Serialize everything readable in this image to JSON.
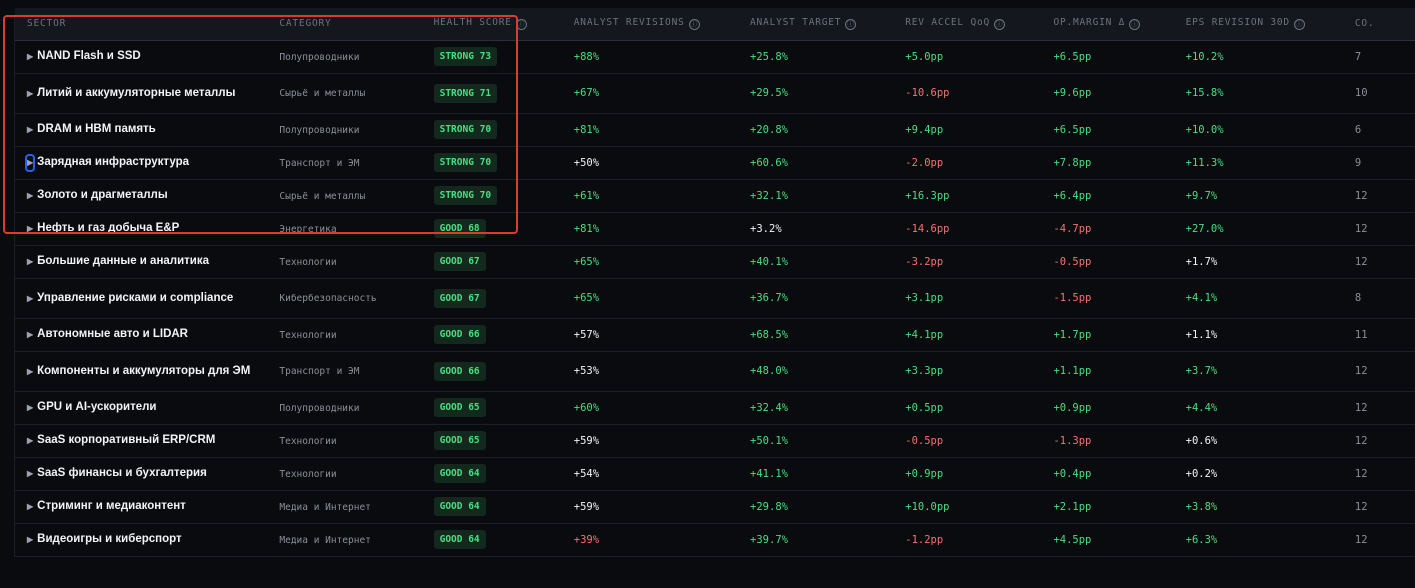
{
  "columns": [
    {
      "label": "SECTOR",
      "info": false
    },
    {
      "label": "CATEGORY",
      "info": false
    },
    {
      "label": "HEALTH SCORE",
      "info": true
    },
    {
      "label": "ANALYST REVISIONS",
      "info": true
    },
    {
      "label": "ANALYST TARGET",
      "info": true
    },
    {
      "label": "REV ACCEL QoQ",
      "info": true
    },
    {
      "label": "OP.MARGIN Δ",
      "info": true
    },
    {
      "label": "EPS REVISION 30D",
      "info": true
    },
    {
      "label": "CO.",
      "info": false
    }
  ],
  "info_glyph": "ⓘ",
  "expand_glyph": "▶",
  "colors": {
    "positive": "#4ade80",
    "negative": "#f87171",
    "neutral": "#f3f4f6",
    "highlight_box": "#dc3b2f",
    "focus": "#2563eb"
  },
  "rows": [
    {
      "sector": "NAND Flash и SSD",
      "category": "Полупроводники",
      "health": "STRONG 73",
      "cells": [
        [
          "+88%",
          "g"
        ],
        [
          "+25.8%",
          "g"
        ],
        [
          "+5.0pp",
          "g"
        ],
        [
          "+6.5pp",
          "g"
        ],
        [
          "+10.2%",
          "g"
        ]
      ],
      "count": "7"
    },
    {
      "sector": "Литий и аккумуляторные металлы",
      "category": "Сырьё и металлы",
      "health": "STRONG 71",
      "cells": [
        [
          "+67%",
          "g"
        ],
        [
          "+29.5%",
          "g"
        ],
        [
          "-10.6pp",
          "r"
        ],
        [
          "+9.6pp",
          "g"
        ],
        [
          "+15.8%",
          "g"
        ]
      ],
      "count": "10"
    },
    {
      "sector": "DRAM и HBM память",
      "category": "Полупроводники",
      "health": "STRONG 70",
      "cells": [
        [
          "+81%",
          "g"
        ],
        [
          "+20.8%",
          "g"
        ],
        [
          "+9.4pp",
          "g"
        ],
        [
          "+6.5pp",
          "g"
        ],
        [
          "+10.0%",
          "g"
        ]
      ],
      "count": "6"
    },
    {
      "sector": "Зарядная инфраструктура",
      "category": "Транспорт и ЭМ",
      "health": "STRONG 70",
      "focused": true,
      "cells": [
        [
          "+50%",
          "w"
        ],
        [
          "+60.6%",
          "g"
        ],
        [
          "-2.0pp",
          "r"
        ],
        [
          "+7.8pp",
          "g"
        ],
        [
          "+11.3%",
          "g"
        ]
      ],
      "count": "9"
    },
    {
      "sector": "Золото и драгметаллы",
      "category": "Сырьё и металлы",
      "health": "STRONG 70",
      "cells": [
        [
          "+61%",
          "g"
        ],
        [
          "+32.1%",
          "g"
        ],
        [
          "+16.3pp",
          "g"
        ],
        [
          "+6.4pp",
          "g"
        ],
        [
          "+9.7%",
          "g"
        ]
      ],
      "count": "12"
    },
    {
      "sector": "Нефть и газ добыча E&P",
      "category": "Энергетика",
      "health": "GOOD 68",
      "cells": [
        [
          "+81%",
          "g"
        ],
        [
          "+3.2%",
          "w"
        ],
        [
          "-14.6pp",
          "r"
        ],
        [
          "-4.7pp",
          "r"
        ],
        [
          "+27.0%",
          "g"
        ]
      ],
      "count": "12"
    },
    {
      "sector": "Большие данные и аналитика",
      "category": "Технологии",
      "health": "GOOD 67",
      "cells": [
        [
          "+65%",
          "g"
        ],
        [
          "+40.1%",
          "g"
        ],
        [
          "-3.2pp",
          "r"
        ],
        [
          "-0.5pp",
          "r"
        ],
        [
          "+1.7%",
          "w"
        ]
      ],
      "count": "12"
    },
    {
      "sector": "Управление рисками и compliance",
      "category": "Кибербезопасность",
      "health": "GOOD 67",
      "cells": [
        [
          "+65%",
          "g"
        ],
        [
          "+36.7%",
          "g"
        ],
        [
          "+3.1pp",
          "g"
        ],
        [
          "-1.5pp",
          "r"
        ],
        [
          "+4.1%",
          "g"
        ]
      ],
      "count": "8"
    },
    {
      "sector": "Автономные авто и LIDAR",
      "category": "Технологии",
      "health": "GOOD 66",
      "cells": [
        [
          "+57%",
          "w"
        ],
        [
          "+68.5%",
          "g"
        ],
        [
          "+4.1pp",
          "g"
        ],
        [
          "+1.7pp",
          "g"
        ],
        [
          "+1.1%",
          "w"
        ]
      ],
      "count": "11"
    },
    {
      "sector": "Компоненты и аккумуляторы для ЭМ",
      "category": "Транспорт и ЭМ",
      "health": "GOOD 66",
      "cells": [
        [
          "+53%",
          "w"
        ],
        [
          "+48.0%",
          "g"
        ],
        [
          "+3.3pp",
          "g"
        ],
        [
          "+1.1pp",
          "g"
        ],
        [
          "+3.7%",
          "g"
        ]
      ],
      "count": "12"
    },
    {
      "sector": "GPU и AI-ускорители",
      "category": "Полупроводники",
      "health": "GOOD 65",
      "cells": [
        [
          "+60%",
          "g"
        ],
        [
          "+32.4%",
          "g"
        ],
        [
          "+0.5pp",
          "g"
        ],
        [
          "+0.9pp",
          "g"
        ],
        [
          "+4.4%",
          "g"
        ]
      ],
      "count": "12"
    },
    {
      "sector": "SaaS корпоративный ERP/CRM",
      "category": "Технологии",
      "health": "GOOD 65",
      "cells": [
        [
          "+59%",
          "w"
        ],
        [
          "+50.1%",
          "g"
        ],
        [
          "-0.5pp",
          "r"
        ],
        [
          "-1.3pp",
          "r"
        ],
        [
          "+0.6%",
          "w"
        ]
      ],
      "count": "12"
    },
    {
      "sector": "SaaS финансы и бухгалтерия",
      "category": "Технологии",
      "health": "GOOD 64",
      "cells": [
        [
          "+54%",
          "w"
        ],
        [
          "+41.1%",
          "g"
        ],
        [
          "+0.9pp",
          "g"
        ],
        [
          "+0.4pp",
          "g"
        ],
        [
          "+0.2%",
          "w"
        ]
      ],
      "count": "12"
    },
    {
      "sector": "Стриминг и медиаконтент",
      "category": "Медиа и Интернет",
      "health": "GOOD 64",
      "cells": [
        [
          "+59%",
          "w"
        ],
        [
          "+29.8%",
          "g"
        ],
        [
          "+10.0pp",
          "g"
        ],
        [
          "+2.1pp",
          "g"
        ],
        [
          "+3.8%",
          "g"
        ]
      ],
      "count": "12"
    },
    {
      "sector": "Видеоигры и киберспорт",
      "category": "Медиа и Интернет",
      "health": "GOOD 64",
      "cells": [
        [
          "+39%",
          "r"
        ],
        [
          "+39.7%",
          "g"
        ],
        [
          "-1.2pp",
          "r"
        ],
        [
          "+4.5pp",
          "g"
        ],
        [
          "+6.3%",
          "g"
        ]
      ],
      "count": "12"
    }
  ]
}
